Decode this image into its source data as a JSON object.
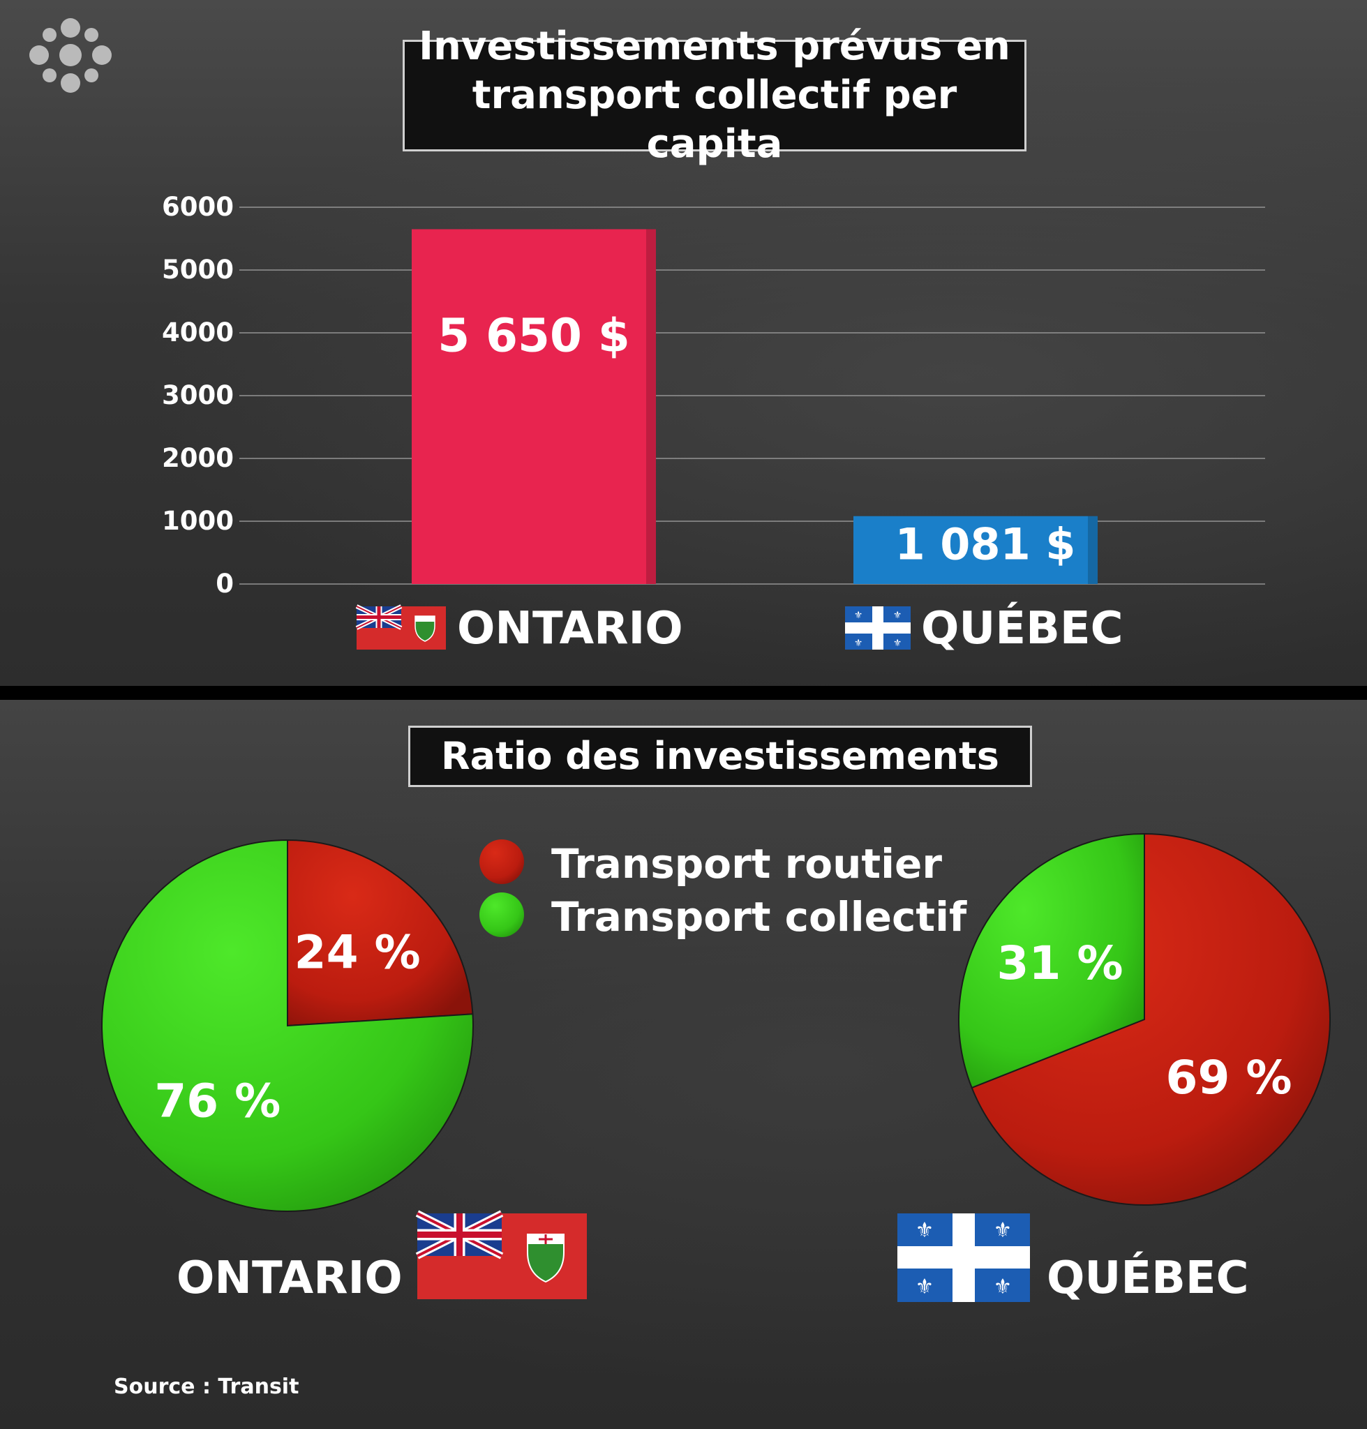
{
  "top": {
    "title_line1": "Investissements prévus en",
    "title_line2": "transport collectif per capita"
  },
  "bottom": {
    "title": "Ratio des investissements",
    "legend": [
      "Transport routier",
      "Transport collectif"
    ],
    "ontario_label": "ONTARIO",
    "quebec_label": "QUÉBEC"
  },
  "source": "Source : Transit",
  "colors": {
    "ontario_bar": "#e8244f",
    "quebec_bar": "#1a7fc9",
    "routier": "#c41b10",
    "collectif": "#39d61a"
  },
  "chart_data": [
    {
      "type": "bar",
      "title": "Investissements prévus en transport collectif per capita",
      "categories": [
        "ONTARIO",
        "QUÉBEC"
      ],
      "values": [
        5650,
        1081
      ],
      "data_labels": [
        "5 650 $",
        "1 081 $"
      ],
      "yticks": [
        0,
        1000,
        2000,
        3000,
        4000,
        5000,
        6000
      ],
      "ylim": [
        0,
        6000
      ],
      "grid": true
    },
    {
      "type": "pie",
      "title": "Ratio des investissements",
      "name": "ONTARIO",
      "slices": [
        {
          "label": "Transport routier",
          "value": 24,
          "text": "24 %"
        },
        {
          "label": "Transport collectif",
          "value": 76,
          "text": "76 %"
        }
      ]
    },
    {
      "type": "pie",
      "title": "Ratio des investissements",
      "name": "QUÉBEC",
      "slices": [
        {
          "label": "Transport routier",
          "value": 69,
          "text": "69 %"
        },
        {
          "label": "Transport collectif",
          "value": 31,
          "text": "31 %"
        }
      ]
    }
  ]
}
